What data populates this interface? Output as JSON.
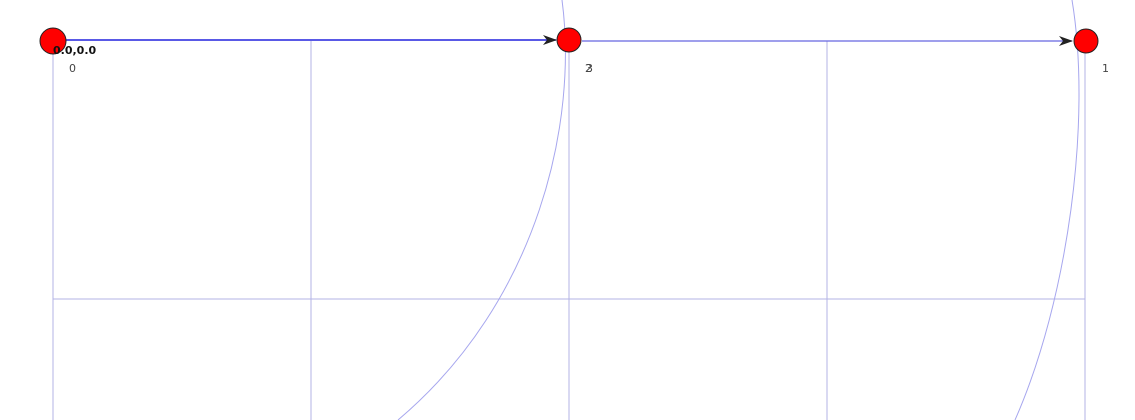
{
  "coordinate_readout": "0.0,0.0",
  "nodes": [
    {
      "id": "0",
      "label": "0"
    },
    {
      "id": "2",
      "label": "2"
    },
    {
      "id": "3",
      "label": "3"
    },
    {
      "id": "1",
      "label": "1"
    }
  ],
  "edges": [
    {
      "from": "0",
      "to": "2"
    },
    {
      "from": "2",
      "to": "1"
    }
  ],
  "colors": {
    "node_fill": "#ff0000",
    "edge": "#2222dd",
    "grid": "#b3b3e6",
    "arc": "#a6a6ee"
  }
}
